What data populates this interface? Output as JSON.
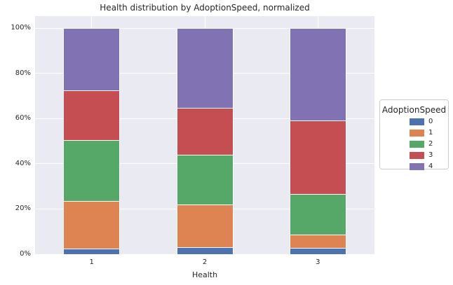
{
  "title": "Health distribution by AdoptionSpeed, normalized",
  "axes": {
    "xlabel": "Health",
    "x_ticks": [
      "1",
      "2",
      "3"
    ],
    "y_ticks": [
      "0%",
      "20%",
      "40%",
      "60%",
      "80%",
      "100%"
    ]
  },
  "legend": {
    "title": "AdoptionSpeed",
    "entries": [
      {
        "label": "0",
        "color": "#4c72b0"
      },
      {
        "label": "1",
        "color": "#dd8452"
      },
      {
        "label": "2",
        "color": "#55a868"
      },
      {
        "label": "3",
        "color": "#c44e52"
      },
      {
        "label": "4",
        "color": "#8172b3"
      }
    ]
  },
  "colors": {
    "plot_background": "#eaeaf2",
    "gridline": "#ffffff",
    "text": "#262626",
    "legend_border": "#cccccc"
  },
  "chart_data": {
    "type": "bar",
    "stacked": true,
    "normalized": true,
    "title": "Health distribution by AdoptionSpeed, normalized",
    "xlabel": "Health",
    "ylabel": "",
    "categories": [
      "1",
      "2",
      "3"
    ],
    "series": [
      {
        "name": "0",
        "color": "#4c72b0",
        "values": [
          2.5,
          3.2,
          2.7
        ]
      },
      {
        "name": "1",
        "color": "#dd8452",
        "values": [
          21.0,
          18.8,
          6.0
        ]
      },
      {
        "name": "2",
        "color": "#55a868",
        "values": [
          27.1,
          22.0,
          18.0
        ]
      },
      {
        "name": "3",
        "color": "#c44e52",
        "values": [
          21.7,
          20.7,
          32.4
        ]
      },
      {
        "name": "4",
        "color": "#8172b3",
        "values": [
          27.7,
          35.3,
          40.9
        ]
      }
    ],
    "y_unit": "percent of category total",
    "ylim": [
      0,
      105
    ],
    "grid": true,
    "legend_title": "AdoptionSpeed",
    "legend_position": "center-right-outside"
  }
}
